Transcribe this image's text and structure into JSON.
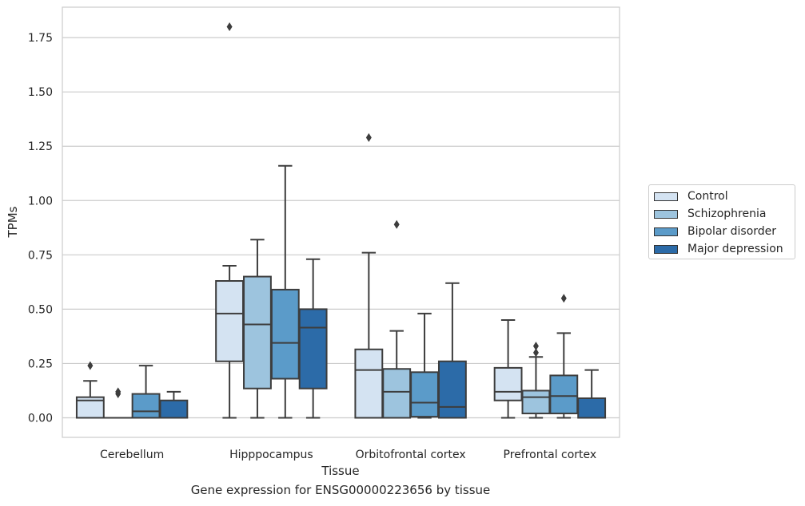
{
  "chart_data": {
    "type": "box",
    "title": "",
    "caption": "Gene expression for ENSG00000223656 by tissue",
    "xlabel": "Tissue",
    "ylabel": "TPMs",
    "ylim": [
      -0.09,
      1.89
    ],
    "yticks": [
      "0.00",
      "0.25",
      "0.50",
      "0.75",
      "1.00",
      "1.25",
      "1.50",
      "1.75"
    ],
    "ytick_values": [
      0,
      0.25,
      0.5,
      0.75,
      1.0,
      1.25,
      1.5,
      1.75
    ],
    "grid": "horizontal",
    "legend_position": "right",
    "categories": [
      "Cerebellum",
      "Hipppocampus",
      "Orbitofrontal cortex",
      "Prefrontal cortex"
    ],
    "series": [
      {
        "name": "Control",
        "color": "#d4e3f2",
        "boxes": [
          {
            "min": 0,
            "q1": 0,
            "median": 0.08,
            "q3": 0.095,
            "max": 0.17,
            "outliers": [
              0.24
            ]
          },
          {
            "min": 0,
            "q1": 0.26,
            "median": 0.48,
            "q3": 0.63,
            "max": 0.7,
            "outliers": [
              1.8
            ]
          },
          {
            "min": 0,
            "q1": 0,
            "median": 0.22,
            "q3": 0.315,
            "max": 0.76,
            "outliers": [
              1.29
            ]
          },
          {
            "min": 0,
            "q1": 0.08,
            "median": 0.12,
            "q3": 0.23,
            "max": 0.45,
            "outliers": []
          }
        ]
      },
      {
        "name": "Schizophrenia",
        "color": "#9dc4de",
        "boxes": [
          {
            "min": 0,
            "q1": 0,
            "median": 0,
            "q3": 0,
            "max": 0,
            "outliers": [
              0.11,
              0.12
            ]
          },
          {
            "min": 0,
            "q1": 0.135,
            "median": 0.43,
            "q3": 0.65,
            "max": 0.82,
            "outliers": []
          },
          {
            "min": 0,
            "q1": 0,
            "median": 0.12,
            "q3": 0.225,
            "max": 0.4,
            "outliers": [
              0.89
            ]
          },
          {
            "min": 0,
            "q1": 0.02,
            "median": 0.095,
            "q3": 0.125,
            "max": 0.28,
            "outliers": [
              0.3,
              0.33
            ]
          }
        ]
      },
      {
        "name": "Bipolar disorder",
        "color": "#5b9bc9",
        "boxes": [
          {
            "min": 0,
            "q1": 0,
            "median": 0.03,
            "q3": 0.11,
            "max": 0.24,
            "outliers": []
          },
          {
            "min": 0,
            "q1": 0.18,
            "median": 0.345,
            "q3": 0.59,
            "max": 1.16,
            "outliers": []
          },
          {
            "min": 0,
            "q1": 0.005,
            "median": 0.07,
            "q3": 0.21,
            "max": 0.48,
            "outliers": []
          },
          {
            "min": 0,
            "q1": 0.02,
            "median": 0.1,
            "q3": 0.195,
            "max": 0.39,
            "outliers": [
              0.55
            ]
          }
        ]
      },
      {
        "name": "Major depression",
        "color": "#2c6ba8",
        "boxes": [
          {
            "min": 0,
            "q1": 0,
            "median": 0,
            "q3": 0.08,
            "max": 0.12,
            "outliers": []
          },
          {
            "min": 0,
            "q1": 0.135,
            "median": 0.415,
            "q3": 0.5,
            "max": 0.73,
            "outliers": []
          },
          {
            "min": 0,
            "q1": 0,
            "median": 0.05,
            "q3": 0.26,
            "max": 0.62,
            "outliers": []
          },
          {
            "min": 0,
            "q1": 0,
            "median": 0,
            "q3": 0.09,
            "max": 0.22,
            "outliers": []
          }
        ]
      }
    ]
  },
  "colors": {
    "edge": "#3d3d3d",
    "grid": "#cccccc",
    "frame": "#cccccc"
  }
}
